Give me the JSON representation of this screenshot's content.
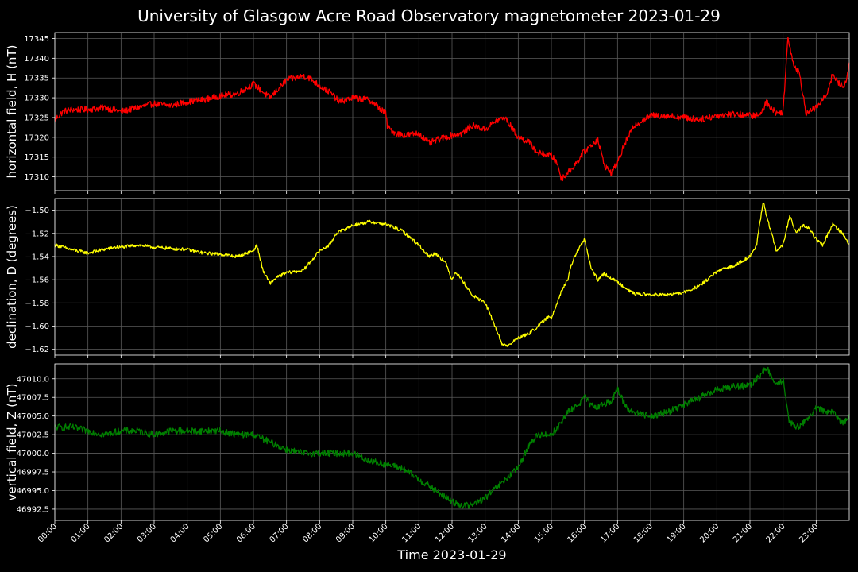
{
  "chart_data": {
    "title": "University of Glasgow Acre Road Observatory magnetometer 2023-01-29",
    "xlabel": "Time 2023-01-29",
    "x_ticks": [
      "00:00",
      "01:00",
      "02:00",
      "03:00",
      "04:00",
      "05:00",
      "06:00",
      "07:00",
      "08:00",
      "09:00",
      "10:00",
      "11:00",
      "12:00",
      "13:00",
      "14:00",
      "15:00",
      "16:00",
      "17:00",
      "18:00",
      "19:00",
      "20:00",
      "21:00",
      "22:00",
      "23:00"
    ],
    "x_range_hours": [
      0,
      24
    ],
    "grid": true,
    "panels": [
      {
        "type": "line",
        "ylabel": "horizontal field, H (nT)",
        "color": "#ff0000",
        "ylim": [
          17306.5,
          17346.5
        ],
        "yticks": [
          17310,
          17315,
          17320,
          17325,
          17330,
          17335,
          17340,
          17345
        ],
        "ytick_labels": [
          "17310",
          "17315",
          "17320",
          "17325",
          "17330",
          "17335",
          "17340",
          "17345"
        ],
        "noise": 0.8,
        "x": [
          0,
          0.25,
          0.5,
          1,
          1.5,
          2,
          2.5,
          3,
          3.5,
          4,
          4.5,
          5,
          5.5,
          6,
          6.5,
          7,
          7.5,
          7.7,
          8,
          8.3,
          8.6,
          9,
          9.5,
          10,
          10.05,
          10.3,
          10.6,
          11,
          11.3,
          11.6,
          12,
          12.3,
          12.6,
          13,
          13.3,
          13.6,
          14,
          14.3,
          14.6,
          15,
          15.2,
          15.3,
          15.5,
          15.8,
          16,
          16.2,
          16.4,
          16.6,
          16.8,
          17,
          17.2,
          17.5,
          18,
          18.5,
          19,
          19.5,
          20,
          20.5,
          21,
          21.3,
          21.5,
          21.8,
          22,
          22.15,
          22.3,
          22.5,
          22.7,
          23,
          23.3,
          23.5,
          23.7,
          23.85,
          24
        ],
        "y": [
          17324.5,
          17326.5,
          17327,
          17327,
          17327.5,
          17326.5,
          17327.5,
          17328.5,
          17328,
          17329,
          17329.5,
          17330.5,
          17331,
          17333.5,
          17330,
          17334.5,
          17335.5,
          17335,
          17333,
          17331.5,
          17329,
          17330,
          17329.5,
          17326,
          17322.5,
          17321,
          17320.5,
          17321,
          17318.5,
          17319.5,
          17320.5,
          17321,
          17323,
          17322,
          17324,
          17325,
          17320,
          17319,
          17316,
          17315.5,
          17313,
          17309.5,
          17311,
          17314,
          17316.5,
          17318,
          17319.5,
          17313,
          17311,
          17313.5,
          17318,
          17323,
          17325.5,
          17325.5,
          17325,
          17324.5,
          17325.5,
          17326,
          17325.5,
          17325.5,
          17329,
          17326,
          17326.5,
          17345.5,
          17339,
          17336,
          17326,
          17327.5,
          17330.5,
          17336,
          17333.5,
          17332.5,
          17338.5
        ]
      },
      {
        "type": "line",
        "ylabel": "declination, D (degrees)",
        "color": "#ffff00",
        "ylim": [
          -1.625,
          -1.49
        ],
        "yticks": [
          -1.62,
          -1.6,
          -1.58,
          -1.56,
          -1.54,
          -1.52,
          -1.5
        ],
        "ytick_labels": [
          "−1.62",
          "−1.60",
          "−1.58",
          "−1.56",
          "−1.54",
          "−1.52",
          "−1.50"
        ],
        "noise": 0.0014,
        "x": [
          0,
          0.5,
          1,
          1.3,
          1.8,
          2,
          2.5,
          3,
          3.5,
          4,
          4.5,
          5,
          5.5,
          6,
          6.1,
          6.3,
          6.5,
          6.7,
          7,
          7.5,
          8,
          8.3,
          8.5,
          9,
          9.5,
          10,
          10.5,
          11,
          11.3,
          11.5,
          11.8,
          12,
          12.1,
          12.3,
          12.6,
          13,
          13.3,
          13.5,
          13.7,
          14,
          14.3,
          14.6,
          14.9,
          15,
          15.3,
          15.5,
          15.6,
          15.7,
          16,
          16.2,
          16.4,
          16.6,
          17,
          17.5,
          18,
          18.5,
          19,
          19.5,
          20,
          20.5,
          21,
          21.2,
          21.4,
          21.6,
          21.8,
          22,
          22.2,
          22.4,
          22.6,
          22.8,
          23,
          23.2,
          23.5,
          23.8,
          24
        ],
        "y": [
          -1.53,
          -1.534,
          -1.537,
          -1.535,
          -1.532,
          -1.532,
          -1.53,
          -1.532,
          -1.533,
          -1.534,
          -1.537,
          -1.538,
          -1.54,
          -1.535,
          -1.53,
          -1.553,
          -1.563,
          -1.558,
          -1.554,
          -1.552,
          -1.535,
          -1.53,
          -1.52,
          -1.513,
          -1.51,
          -1.512,
          -1.518,
          -1.53,
          -1.54,
          -1.537,
          -1.545,
          -1.56,
          -1.553,
          -1.56,
          -1.573,
          -1.58,
          -1.6,
          -1.615,
          -1.617,
          -1.61,
          -1.607,
          -1.6,
          -1.592,
          -1.593,
          -1.57,
          -1.56,
          -1.548,
          -1.54,
          -1.525,
          -1.55,
          -1.56,
          -1.555,
          -1.562,
          -1.572,
          -1.573,
          -1.573,
          -1.571,
          -1.565,
          -1.553,
          -1.548,
          -1.54,
          -1.53,
          -1.493,
          -1.515,
          -1.535,
          -1.53,
          -1.505,
          -1.52,
          -1.513,
          -1.516,
          -1.525,
          -1.53,
          -1.512,
          -1.52,
          -1.53
        ]
      },
      {
        "type": "line",
        "ylabel": "vertical field, Z (nT)",
        "color": "#008000",
        "ylim": [
          46991,
          47012
        ],
        "yticks": [
          46992.5,
          46995.0,
          46997.5,
          47000.0,
          47002.5,
          47005.0,
          47007.5,
          47010.0
        ],
        "ytick_labels": [
          "46992.5",
          "46995.0",
          "46997.5",
          "47000.0",
          "47002.5",
          "47005.0",
          "47007.5",
          "47010.0"
        ],
        "noise": 0.45,
        "x": [
          0,
          0.5,
          1,
          1.5,
          2,
          2.5,
          3,
          3.5,
          4,
          4.5,
          5,
          5.5,
          6,
          6.5,
          7,
          7.5,
          8,
          8.5,
          9,
          9.5,
          10,
          10.5,
          11,
          11.5,
          12,
          12.3,
          12.6,
          13,
          13.5,
          14,
          14.3,
          14.6,
          15,
          15.2,
          15.5,
          15.8,
          16,
          16.3,
          16.5,
          16.8,
          17,
          17.3,
          17.5,
          18,
          18.5,
          19,
          19.5,
          20,
          20.5,
          21,
          21.5,
          21.8,
          22,
          22.2,
          22.5,
          23,
          23.5,
          23.8,
          24
        ],
        "y": [
          47003.5,
          47003.5,
          47003,
          47002.5,
          47003,
          47003,
          47002.5,
          47003,
          47003,
          47003,
          47003,
          47002.5,
          47002.5,
          47001.5,
          47000.5,
          47000,
          47000,
          47000,
          47000,
          46999,
          46998.5,
          46998,
          46996.5,
          46995,
          46993.5,
          46993,
          46993,
          46994,
          46996,
          46998,
          47001,
          47002.5,
          47002.5,
          47003.5,
          47005.5,
          47006.5,
          47007.5,
          47006,
          47006.5,
          47007,
          47008.5,
          47006,
          47005.5,
          47005,
          47005.5,
          47006.5,
          47007.5,
          47008.5,
          47009,
          47009,
          47011.5,
          47009,
          47010,
          47004,
          47003.5,
          47006,
          47005.5,
          47004,
          47005
        ]
      }
    ]
  }
}
